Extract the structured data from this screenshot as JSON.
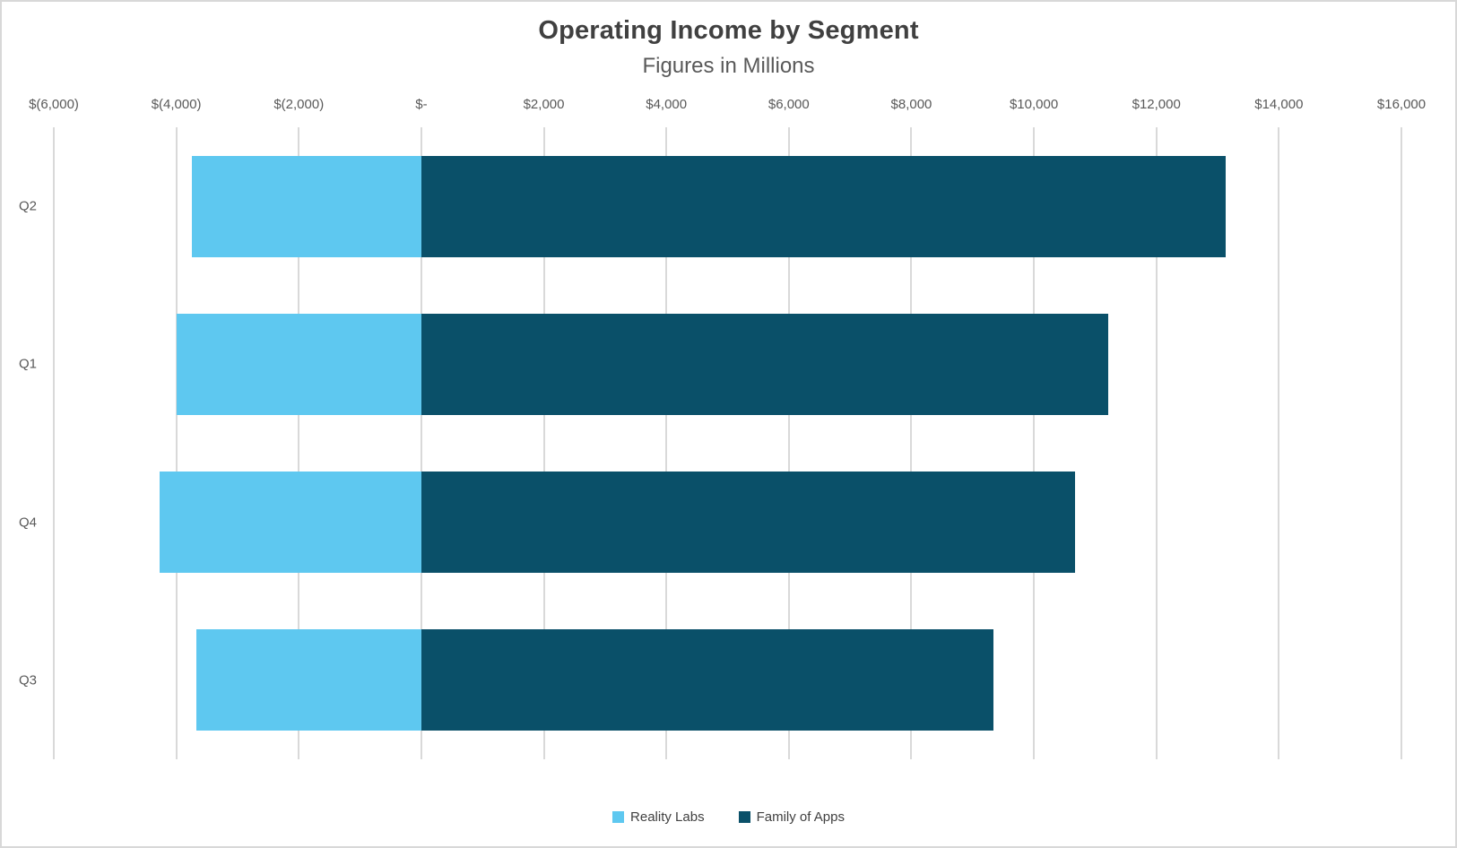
{
  "chart_data": {
    "type": "bar",
    "orientation": "horizontal",
    "title": "Operating Income by Segment",
    "subtitle": "Figures in Millions",
    "categories": [
      "Q2",
      "Q1",
      "Q4",
      "Q3"
    ],
    "series": [
      {
        "name": "Reality Labs",
        "color": "#5EC8F0",
        "values": [
          -3739,
          -3992,
          -4279,
          -3672
        ]
      },
      {
        "name": "Family of Apps",
        "color": "#0A5069",
        "values": [
          13131,
          11219,
          10678,
          9336
        ]
      }
    ],
    "xlim": [
      -6000,
      16000
    ],
    "x_tick_values": [
      -6000,
      -4000,
      -2000,
      0,
      2000,
      4000,
      6000,
      8000,
      10000,
      12000,
      14000,
      16000
    ],
    "x_tick_labels": [
      "$(6,000)",
      "$(4,000)",
      "$(2,000)",
      "$-",
      "$2,000",
      "$4,000",
      "$6,000",
      "$8,000",
      "$10,000",
      "$12,000",
      "$14,000",
      "$16,000"
    ],
    "grid": true,
    "legend_position": "bottom"
  },
  "colors": {
    "gridline": "#D9D9D9",
    "axis_text": "#595959",
    "title_text": "#404040",
    "background": "#FFFFFF"
  }
}
